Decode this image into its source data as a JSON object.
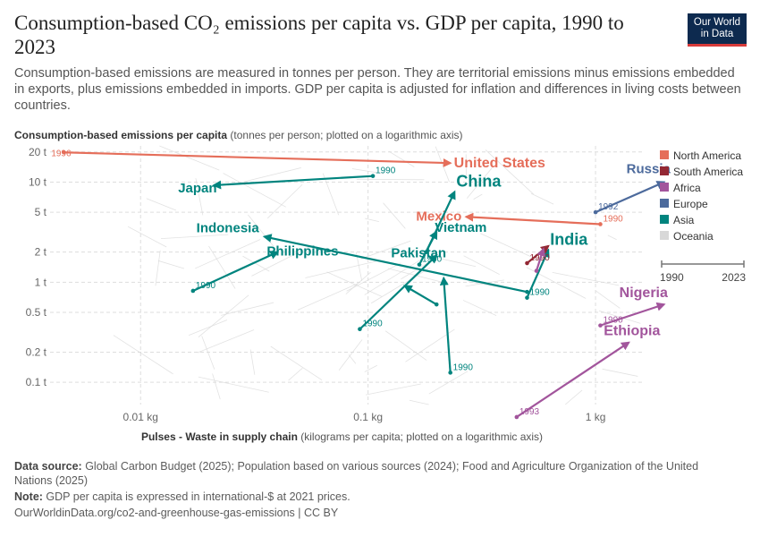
{
  "title": "Consumption-based CO₂ emissions per capita vs. GDP per capita, 1990 to 2023",
  "subtitle": "Consumption-based emissions are measured in tonnes per person. They are territorial emissions minus emissions embedded in exports, plus emissions embedded in imports. GDP per capita is adjusted for inflation and differences in living costs between countries.",
  "logo": {
    "line1": "Our World",
    "line2": "in Data"
  },
  "y_axis_title": {
    "bold": "Consumption-based emissions per capita",
    "rest": " (tonnes per person; plotted on a logarithmic axis)"
  },
  "x_axis_title": {
    "bold": "Pulses - Waste in supply chain",
    "rest": " (kilograms per capita; plotted on a logarithmic axis)"
  },
  "footer": {
    "source_label": "Data source:",
    "source_text": " Global Carbon Budget (2025); Population based on various sources (2024); Food and Agriculture Organization of the United Nations (2025)",
    "note_label": "Note:",
    "note_text": " GDP per capita is expressed in international-$ at 2021 prices.",
    "url": "OurWorldinData.org/co2-and-greenhouse-gas-emissions | CC BY"
  },
  "colors": {
    "North America": "#e56e5a",
    "South America": "#932834",
    "Africa": "#a2559c",
    "Europe": "#4c6a9c",
    "Asia": "#00847e",
    "Oceania": "#d8d8d8",
    "grid": "#dddddd",
    "background_lines": "#d9d9d9"
  },
  "timeline": {
    "start": "1990",
    "end": "2023"
  },
  "chart_data": {
    "type": "scatter",
    "mode": "connected",
    "x_scale": "log",
    "y_scale": "log",
    "xlim": [
      0.004,
      1.6
    ],
    "ylim": [
      0.06,
      23
    ],
    "x_ticks": [
      {
        "v": 0.01,
        "label": "0.01 kg"
      },
      {
        "v": 0.1,
        "label": "0.1 kg"
      },
      {
        "v": 1,
        "label": "1 kg"
      }
    ],
    "y_ticks": [
      {
        "v": 0.1,
        "label": "0.1 t"
      },
      {
        "v": 0.2,
        "label": "0.2 t"
      },
      {
        "v": 0.5,
        "label": "0.5 t"
      },
      {
        "v": 1,
        "label": "1 t"
      },
      {
        "v": 2,
        "label": "2 t"
      },
      {
        "v": 5,
        "label": "5 t"
      },
      {
        "v": 10,
        "label": "10 t"
      },
      {
        "v": 20,
        "label": "20 t"
      }
    ],
    "grid": true,
    "legend_position": "right",
    "legend": [
      "North America",
      "South America",
      "Africa",
      "Europe",
      "Asia",
      "Oceania"
    ],
    "series": [
      {
        "name": "United States",
        "region": "North America",
        "start_label": "1996",
        "start": [
          0.0046,
          19.8
        ],
        "end": [
          0.23,
          15.5
        ]
      },
      {
        "name": "Mexico",
        "region": "North America",
        "start_label": "1990",
        "start": [
          1.05,
          3.8
        ],
        "end": [
          0.27,
          4.5
        ]
      },
      {
        "name": "Russia",
        "region": "Europe",
        "start_label": "1992",
        "start": [
          1.0,
          5.0
        ],
        "end": [
          2.0,
          10.0
        ]
      },
      {
        "name": "China",
        "region": "Asia",
        "start_label": "",
        "start": [
          0.18,
          2.0
        ],
        "end": [
          0.24,
          8.0
        ]
      },
      {
        "name": "Japan",
        "region": "Asia",
        "start_label": "1990",
        "start": [
          0.105,
          11.5
        ],
        "end": [
          0.021,
          9.3
        ]
      },
      {
        "name": "India",
        "region": "Asia",
        "start_label": "1990",
        "start": [
          0.5,
          0.7
        ],
        "end": [
          0.62,
          2.1
        ]
      },
      {
        "name": "Vietnam",
        "region": "Asia",
        "start_label": "1990",
        "start": [
          0.168,
          1.5
        ],
        "end": [
          0.2,
          3.2
        ]
      },
      {
        "name": "Indonesia",
        "region": "Asia",
        "start_label": "",
        "start": [
          0.5,
          0.8
        ],
        "end": [
          0.035,
          2.85
        ]
      },
      {
        "name": "Philippines",
        "region": "Asia",
        "start_label": "1990",
        "start": [
          0.017,
          0.82
        ],
        "end": [
          0.04,
          2.0
        ]
      },
      {
        "name": "Pakistan",
        "region": "Asia",
        "start_label": "1990",
        "start": [
          0.092,
          0.34
        ],
        "end": [
          0.2,
          1.85
        ]
      },
      {
        "name": "",
        "region": "Asia",
        "start_label": "",
        "start": [
          0.2,
          0.6
        ],
        "end": [
          0.145,
          0.92
        ]
      },
      {
        "name": "",
        "region": "Asia",
        "start_label": "1990",
        "start": [
          0.23,
          0.125
        ],
        "end": [
          0.215,
          1.1
        ]
      },
      {
        "name": "",
        "region": "South America",
        "start_label": "1990",
        "start": [
          0.5,
          1.55
        ],
        "end": [
          0.62,
          2.3
        ]
      },
      {
        "name": "",
        "region": "Africa",
        "start_label": "",
        "start": [
          0.55,
          1.3
        ],
        "end": [
          0.59,
          2.15
        ]
      },
      {
        "name": "Nigeria",
        "region": "Africa",
        "start_label": "1990",
        "start": [
          1.05,
          0.37
        ],
        "end": [
          2.0,
          0.6
        ]
      },
      {
        "name": "Ethiopia",
        "region": "Africa",
        "start_label": "1993",
        "start": [
          0.45,
          0.045
        ],
        "end": [
          1.4,
          0.25
        ]
      }
    ]
  }
}
